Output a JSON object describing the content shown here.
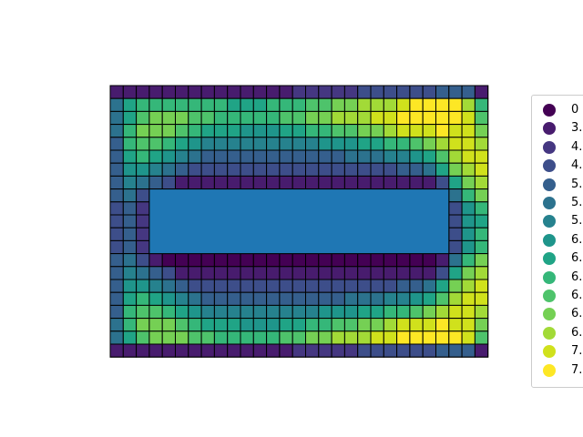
{
  "chart_data": {
    "type": "heatmap",
    "title": "",
    "xlabel": "",
    "ylabel": "",
    "axes_visible": false,
    "grid": {
      "cols": 29,
      "rows": 21,
      "masked_block": {
        "col_start": 3,
        "col_end": 26,
        "row_start": 8,
        "row_end": 13,
        "color": "#1f77b4"
      }
    },
    "colormap": "viridis",
    "legend": {
      "placement": "right",
      "labels": [
        "0",
        "3.",
        "4.",
        "4.",
        "5.",
        "5.",
        "5.",
        "6.",
        "6.",
        "6.",
        "6.",
        "6.",
        "6.",
        "7.",
        "7."
      ],
      "colors": [
        "#440154",
        "#481c6e",
        "#453781",
        "#3d4e8a",
        "#355f8d",
        "#2c728e",
        "#26828e",
        "#1f958b",
        "#20a486",
        "#35b779",
        "#4ec36b",
        "#75d054",
        "#a2da37",
        "#d0e11c",
        "#fde725"
      ]
    },
    "values": [
      [
        1,
        1,
        1,
        1,
        1,
        1,
        1,
        1,
        1,
        1,
        1,
        1,
        1,
        1,
        2,
        2,
        2,
        2,
        2,
        3,
        3,
        3,
        3,
        3,
        3,
        4,
        4,
        4,
        1
      ],
      [
        5,
        8,
        9,
        9,
        9,
        9,
        9,
        9,
        9,
        8,
        8,
        8,
        9,
        9,
        9,
        10,
        10,
        11,
        11,
        12,
        12,
        12,
        13,
        14,
        14,
        14,
        14,
        12,
        9
      ],
      [
        5,
        8,
        10,
        11,
        11,
        11,
        10,
        10,
        9,
        9,
        9,
        9,
        9,
        10,
        10,
        11,
        11,
        12,
        12,
        12,
        13,
        13,
        14,
        14,
        14,
        14,
        14,
        13,
        10
      ],
      [
        5,
        9,
        11,
        11,
        11,
        10,
        9,
        8,
        8,
        8,
        7,
        7,
        7,
        8,
        8,
        9,
        9,
        10,
        10,
        11,
        11,
        12,
        13,
        13,
        13,
        14,
        13,
        13,
        11
      ],
      [
        4,
        9,
        10,
        10,
        9,
        8,
        7,
        6,
        6,
        6,
        6,
        6,
        6,
        6,
        6,
        6,
        7,
        7,
        7,
        8,
        8,
        9,
        9,
        10,
        11,
        12,
        13,
        13,
        12
      ],
      [
        4,
        8,
        9,
        8,
        7,
        6,
        5,
        4,
        4,
        4,
        4,
        4,
        4,
        4,
        4,
        4,
        4,
        4,
        5,
        5,
        5,
        6,
        6,
        7,
        8,
        10,
        12,
        13,
        13
      ],
      [
        4,
        7,
        7,
        6,
        5,
        4,
        3,
        3,
        3,
        3,
        3,
        3,
        3,
        3,
        3,
        3,
        3,
        3,
        3,
        3,
        3,
        3,
        4,
        4,
        5,
        8,
        11,
        12,
        13
      ],
      [
        4,
        6,
        5,
        4,
        3,
        1,
        1,
        1,
        1,
        1,
        1,
        1,
        1,
        1,
        1,
        1,
        1,
        1,
        1,
        1,
        1,
        1,
        1,
        1,
        1,
        3,
        8,
        11,
        12
      ],
      [
        4,
        5,
        3,
        1,
        0,
        0,
        0,
        0,
        0,
        0,
        0,
        0,
        0,
        0,
        0,
        0,
        0,
        0,
        0,
        0,
        0,
        0,
        0,
        0,
        0,
        1,
        5,
        9,
        11
      ],
      [
        3,
        4,
        2,
        0,
        0,
        0,
        0,
        0,
        0,
        0,
        0,
        0,
        0,
        0,
        0,
        0,
        0,
        0,
        0,
        0,
        0,
        0,
        0,
        0,
        0,
        0,
        3,
        7,
        9
      ],
      [
        3,
        4,
        2,
        0,
        0,
        0,
        0,
        0,
        0,
        0,
        0,
        0,
        0,
        0,
        0,
        0,
        0,
        0,
        0,
        0,
        0,
        0,
        0,
        0,
        0,
        0,
        3,
        7,
        8
      ],
      [
        3,
        4,
        2,
        0,
        0,
        0,
        0,
        0,
        0,
        0,
        0,
        0,
        0,
        0,
        0,
        0,
        0,
        0,
        0,
        0,
        0,
        0,
        0,
        0,
        0,
        0,
        3,
        7,
        9
      ],
      [
        3,
        4,
        2,
        0,
        0,
        0,
        0,
        0,
        0,
        0,
        0,
        0,
        0,
        0,
        0,
        0,
        0,
        0,
        0,
        0,
        0,
        0,
        0,
        0,
        0,
        0,
        3,
        7,
        9
      ],
      [
        4,
        5,
        3,
        1,
        0,
        0,
        0,
        0,
        0,
        0,
        0,
        0,
        0,
        0,
        0,
        0,
        0,
        0,
        0,
        0,
        0,
        0,
        0,
        0,
        0,
        1,
        5,
        9,
        11
      ],
      [
        4,
        6,
        5,
        4,
        3,
        1,
        1,
        1,
        1,
        1,
        1,
        1,
        1,
        1,
        1,
        1,
        1,
        1,
        1,
        1,
        1,
        1,
        1,
        1,
        1,
        3,
        8,
        11,
        12
      ],
      [
        4,
        7,
        7,
        6,
        5,
        4,
        3,
        3,
        3,
        3,
        3,
        3,
        3,
        3,
        3,
        3,
        3,
        3,
        3,
        3,
        3,
        3,
        4,
        4,
        5,
        8,
        11,
        12,
        13
      ],
      [
        4,
        8,
        9,
        8,
        7,
        6,
        5,
        4,
        4,
        4,
        4,
        4,
        4,
        4,
        4,
        4,
        4,
        4,
        5,
        5,
        5,
        6,
        6,
        7,
        8,
        10,
        12,
        13,
        13
      ],
      [
        4,
        9,
        10,
        10,
        9,
        8,
        7,
        6,
        6,
        6,
        6,
        6,
        6,
        6,
        6,
        6,
        7,
        7,
        7,
        8,
        8,
        9,
        9,
        10,
        11,
        12,
        13,
        13,
        12
      ],
      [
        5,
        9,
        11,
        11,
        11,
        10,
        9,
        8,
        8,
        8,
        7,
        7,
        7,
        8,
        8,
        9,
        9,
        10,
        10,
        11,
        11,
        12,
        13,
        13,
        13,
        14,
        13,
        13,
        11
      ],
      [
        5,
        8,
        10,
        11,
        11,
        11,
        10,
        10,
        9,
        9,
        9,
        9,
        9,
        10,
        10,
        11,
        11,
        12,
        12,
        12,
        13,
        13,
        14,
        14,
        14,
        14,
        14,
        13,
        10
      ],
      [
        1,
        1,
        1,
        1,
        1,
        1,
        1,
        1,
        1,
        1,
        1,
        1,
        1,
        1,
        2,
        2,
        2,
        2,
        2,
        3,
        3,
        3,
        3,
        3,
        3,
        4,
        4,
        4,
        1
      ]
    ]
  }
}
